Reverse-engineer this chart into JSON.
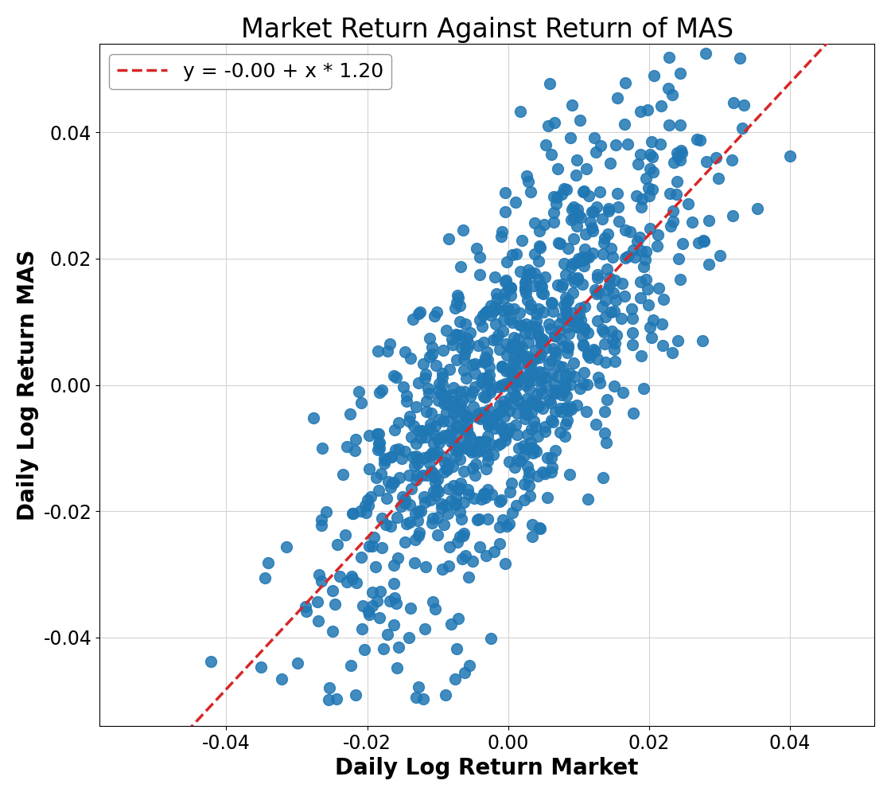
{
  "title": "Market Return Against Return of MAS",
  "xlabel": "Daily Log Return Market",
  "ylabel": "Daily Log Return MAS",
  "legend_label": "y = -0.00 + x * 1.20",
  "intercept": -0.0002,
  "slope": 1.2,
  "scatter_color": "#1f77b4",
  "line_color": "#d62728",
  "xlim": [
    -0.058,
    0.052
  ],
  "ylim": [
    -0.054,
    0.054
  ],
  "xticks": [
    -0.04,
    -0.02,
    0.0,
    0.02,
    0.04
  ],
  "yticks": [
    -0.04,
    -0.02,
    0.0,
    0.02,
    0.04
  ],
  "marker_size": 100,
  "marker_alpha": 0.85,
  "seed": 42,
  "n_points": 1000,
  "market_std": 0.013,
  "idio_std": 0.013,
  "title_fontsize": 24,
  "label_fontsize": 20,
  "tick_fontsize": 17,
  "legend_fontsize": 18,
  "figwidth": 11.2,
  "figheight": 10.0
}
